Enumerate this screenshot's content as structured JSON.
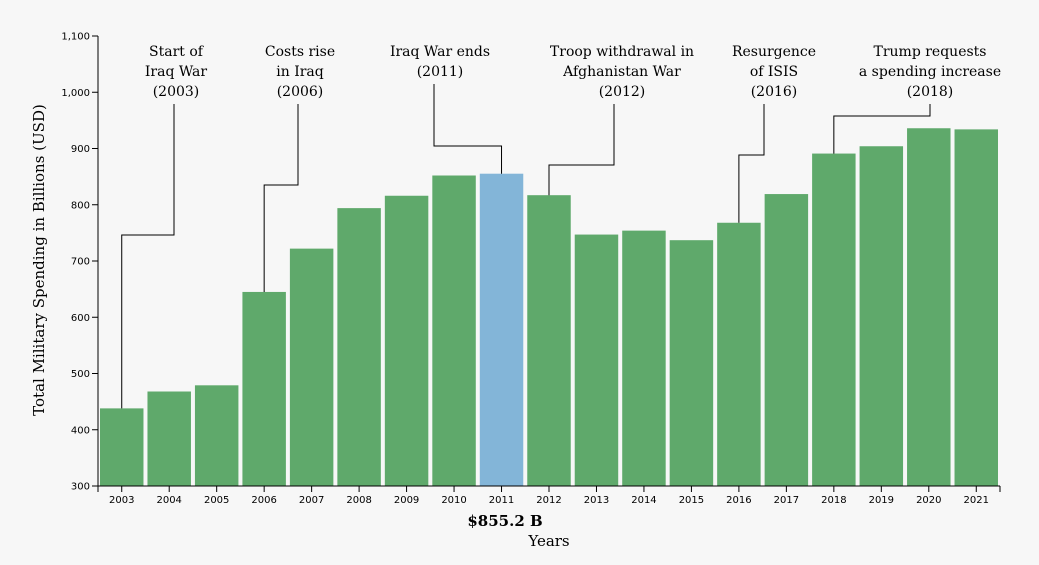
{
  "chart_data": {
    "type": "bar",
    "x": [
      2003,
      2004,
      2005,
      2006,
      2007,
      2008,
      2009,
      2010,
      2011,
      2012,
      2013,
      2014,
      2015,
      2016,
      2017,
      2018,
      2019,
      2020,
      2021
    ],
    "values": [
      438,
      468,
      479,
      645,
      722,
      794,
      816,
      852,
      855.2,
      817,
      747,
      754,
      737,
      768,
      819,
      891,
      904,
      936,
      934
    ],
    "xlabel": "Years",
    "ylabel": "Total Military Spending in Billions (USD)",
    "ylim": [
      300,
      1100
    ],
    "yticks": [
      "300",
      "400",
      "500",
      "600",
      "700",
      "800",
      "900",
      "1,000",
      "1,100"
    ],
    "xticks": [
      "2003",
      "2004",
      "2005",
      "2006",
      "2007",
      "2008",
      "2009",
      "2010",
      "2011",
      "2012",
      "2013",
      "2014",
      "2015",
      "2016",
      "2017",
      "2018",
      "2019",
      "2020",
      "2021"
    ],
    "highlight_year": 2011,
    "bar_color": "#5fa96b",
    "highlight_color": "#83b5d8",
    "grid": false,
    "annotations": [
      {
        "year": 2003,
        "lines": [
          "Start of",
          "Iraq War",
          "(2003)"
        ]
      },
      {
        "year": 2006,
        "lines": [
          "Costs rise",
          "in Iraq",
          "(2006)"
        ]
      },
      {
        "year": 2011,
        "lines": [
          "Iraq War ends",
          "(2011)"
        ]
      },
      {
        "year": 2012,
        "lines": [
          "Troop withdrawal in",
          "Afghanistan War",
          "(2012)"
        ]
      },
      {
        "year": 2016,
        "lines": [
          "Resurgence",
          "of ISIS",
          "(2016)"
        ]
      },
      {
        "year": 2018,
        "lines": [
          "Trump requests",
          "a spending increase",
          "(2018)"
        ]
      }
    ]
  },
  "readout": "$855.2 B"
}
